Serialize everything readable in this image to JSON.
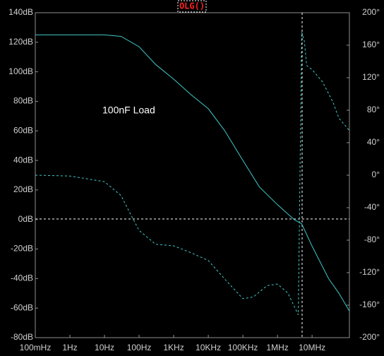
{
  "chart_data": {
    "type": "line",
    "title": "OLG()",
    "annotation": "100nF Load",
    "x_log": true,
    "grid": false,
    "xlim": [
      0.1,
      120000000
    ],
    "xticks": [
      {
        "value": 0.1,
        "label": "100mHz"
      },
      {
        "value": 1,
        "label": "1Hz"
      },
      {
        "value": 10,
        "label": "10Hz"
      },
      {
        "value": 100,
        "label": "100Hz"
      },
      {
        "value": 1000,
        "label": "1KHz"
      },
      {
        "value": 10000,
        "label": "10KHz"
      },
      {
        "value": 100000,
        "label": "100KHz"
      },
      {
        "value": 1000000,
        "label": "1MHz"
      },
      {
        "value": 10000000,
        "label": "10MHz"
      }
    ],
    "ylim": [
      -80,
      140
    ],
    "yticks": [
      {
        "value": 140,
        "label": "140dB"
      },
      {
        "value": 120,
        "label": "120dB"
      },
      {
        "value": 100,
        "label": "100dB"
      },
      {
        "value": 80,
        "label": "80dB"
      },
      {
        "value": 60,
        "label": "60dB"
      },
      {
        "value": 40,
        "label": "40dB"
      },
      {
        "value": 20,
        "label": "20dB"
      },
      {
        "value": 0,
        "label": "0dB"
      },
      {
        "value": -20,
        "label": "-20dB"
      },
      {
        "value": -40,
        "label": "-40dB"
      },
      {
        "value": -60,
        "label": "-60dB"
      },
      {
        "value": -80,
        "label": "-80dB"
      }
    ],
    "y2lim": [
      -200,
      200
    ],
    "y2ticks": [
      {
        "value": 200,
        "label": "200°"
      },
      {
        "value": 160,
        "label": "160°"
      },
      {
        "value": 120,
        "label": "120°"
      },
      {
        "value": 80,
        "label": "80°"
      },
      {
        "value": 40,
        "label": "40°"
      },
      {
        "value": 0,
        "label": "0°"
      },
      {
        "value": -40,
        "label": "-40°"
      },
      {
        "value": -80,
        "label": "-80°"
      },
      {
        "value": -120,
        "label": "-120°"
      },
      {
        "value": -160,
        "label": "-160°"
      },
      {
        "value": -200,
        "label": "-200°"
      }
    ],
    "series": [
      {
        "color": "#40c8c8",
        "dashed": false,
        "axis": "y",
        "x": [
          0.1,
          1,
          10,
          30,
          100,
          300,
          1000,
          3000,
          10000,
          30000,
          100000,
          300000,
          1000000,
          3000000,
          5000000,
          10000000,
          30000000,
          60000000,
          120000000
        ],
        "values": [
          125,
          125,
          125,
          124,
          117,
          105,
          95,
          85,
          75,
          60,
          40,
          22,
          10,
          0,
          -3,
          -18,
          -40,
          -50,
          -62
        ]
      },
      {
        "color": "#40c8c8",
        "dashed": true,
        "axis": "y2",
        "x": [
          0.1,
          1,
          10,
          30,
          60,
          100,
          300,
          1000,
          3000,
          10000,
          30000,
          100000,
          200000,
          500000,
          1000000,
          2000000,
          4000000,
          5000000,
          6000000,
          7000000,
          10000000,
          20000000,
          40000000,
          60000000,
          120000000
        ],
        "values": [
          0,
          -1,
          -8,
          -25,
          -50,
          -68,
          -85,
          -87,
          -95,
          -105,
          -128,
          -152,
          -150,
          -136,
          -134,
          -145,
          -172,
          176,
          165,
          135,
          130,
          115,
          90,
          70,
          55
        ]
      }
    ]
  }
}
